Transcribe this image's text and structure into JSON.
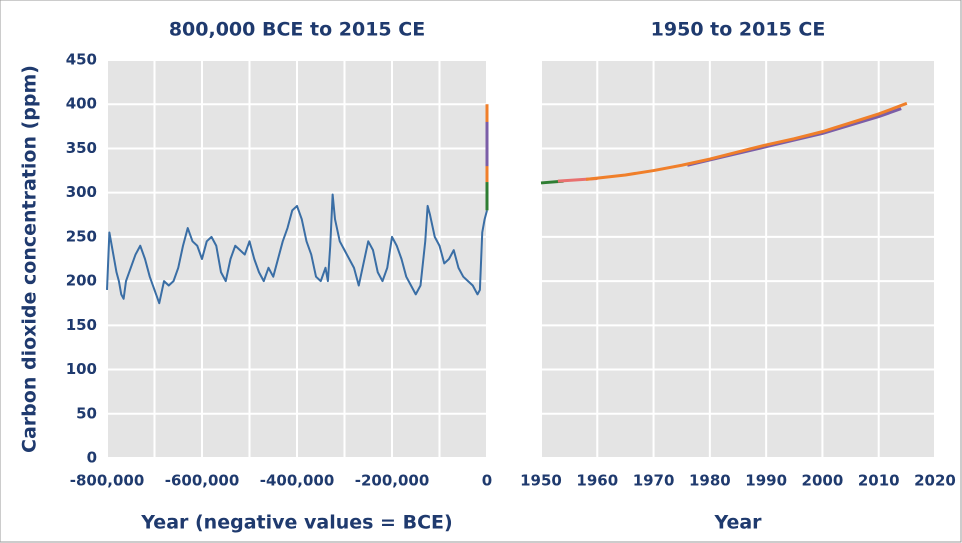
{
  "chart_data": [
    {
      "type": "line",
      "title": "800,000 BCE to 2015 CE",
      "ylabel": "Carbon dioxide concentration (ppm)",
      "xlabel": "Year (negative values = BCE)",
      "xlim": [
        -800000,
        0
      ],
      "ylim": [
        0,
        450
      ],
      "xticks": [
        {
          "value": -800000,
          "label": "-800,000"
        },
        {
          "value": -600000,
          "label": "-600,000"
        },
        {
          "value": -400000,
          "label": "-400,000"
        },
        {
          "value": -200000,
          "label": "-200,000"
        },
        0
      ],
      "xgrid": [
        -700000,
        -500000,
        -300000,
        -100000
      ],
      "yticks": [
        0,
        50,
        100,
        150,
        200,
        250,
        300,
        350,
        400,
        450
      ],
      "grid": true,
      "series": [
        {
          "color": "#3a6ea5",
          "x": [
            -800000,
            -795000,
            -790000,
            -785000,
            -780000,
            -775000,
            -770000,
            -765000,
            -760000,
            -750000,
            -740000,
            -730000,
            -720000,
            -710000,
            -700000,
            -690000,
            -680000,
            -670000,
            -660000,
            -650000,
            -640000,
            -630000,
            -620000,
            -610000,
            -600000,
            -590000,
            -580000,
            -570000,
            -560000,
            -550000,
            -540000,
            -530000,
            -520000,
            -510000,
            -500000,
            -490000,
            -480000,
            -470000,
            -460000,
            -450000,
            -440000,
            -430000,
            -420000,
            -410000,
            -400000,
            -390000,
            -380000,
            -370000,
            -360000,
            -350000,
            -340000,
            -335000,
            -330000,
            -325000,
            -320000,
            -310000,
            -300000,
            -290000,
            -280000,
            -270000,
            -260000,
            -250000,
            -240000,
            -230000,
            -220000,
            -210000,
            -200000,
            -190000,
            -180000,
            -170000,
            -160000,
            -150000,
            -140000,
            -130000,
            -125000,
            -120000,
            -110000,
            -100000,
            -90000,
            -80000,
            -70000,
            -60000,
            -50000,
            -40000,
            -30000,
            -20000,
            -15000,
            -10000,
            -5000,
            0
          ],
          "values": [
            190,
            255,
            240,
            225,
            210,
            200,
            185,
            180,
            200,
            215,
            230,
            240,
            225,
            205,
            190,
            175,
            200,
            195,
            200,
            215,
            240,
            260,
            245,
            240,
            225,
            245,
            250,
            240,
            210,
            200,
            225,
            240,
            235,
            230,
            245,
            225,
            210,
            200,
            215,
            205,
            225,
            245,
            260,
            280,
            285,
            270,
            245,
            230,
            205,
            200,
            215,
            200,
            240,
            298,
            270,
            245,
            235,
            225,
            215,
            195,
            220,
            245,
            235,
            210,
            200,
            215,
            250,
            240,
            225,
            205,
            195,
            185,
            195,
            245,
            285,
            275,
            250,
            240,
            220,
            225,
            235,
            215,
            205,
            200,
            195,
            185,
            190,
            255,
            270,
            280
          ]
        },
        {
          "color": "#2e7d32",
          "x": [
            0,
            0
          ],
          "values": [
            280,
            312
          ]
        },
        {
          "color": "#f07f2a",
          "x": [
            0,
            0
          ],
          "values": [
            312,
            400
          ]
        },
        {
          "color": "#7b5ea7",
          "x": [
            0,
            0
          ],
          "values": [
            330,
            380
          ]
        }
      ]
    },
    {
      "type": "line",
      "title": "1950 to 2015 CE",
      "xlabel": "Year",
      "xlim": [
        1950,
        2020
      ],
      "ylim": [
        0,
        450
      ],
      "xticks": [
        1950,
        1960,
        1970,
        1980,
        1990,
        2000,
        2010,
        2020
      ],
      "ygrid": [
        0,
        50,
        100,
        150,
        200,
        250,
        300,
        350,
        400,
        450
      ],
      "grid": true,
      "series": [
        {
          "color": "#2e7d32",
          "x": [
            1950,
            1954
          ],
          "values": [
            311,
            313
          ]
        },
        {
          "color": "#e8706f",
          "x": [
            1953,
            1960
          ],
          "values": [
            313,
            316
          ]
        },
        {
          "color": "#7b5ea7",
          "x": [
            1976,
            1980,
            1990,
            2000,
            2010,
            2014
          ],
          "values": [
            331,
            337,
            352,
            367,
            386,
            395
          ]
        },
        {
          "color": "#f07f2a",
          "x": [
            1958,
            1965,
            1970,
            1975,
            1980,
            1985,
            1990,
            1995,
            2000,
            2005,
            2010,
            2015
          ],
          "values": [
            315,
            320,
            325,
            331,
            338,
            346,
            354,
            361,
            369,
            379,
            389,
            401
          ]
        }
      ]
    }
  ]
}
